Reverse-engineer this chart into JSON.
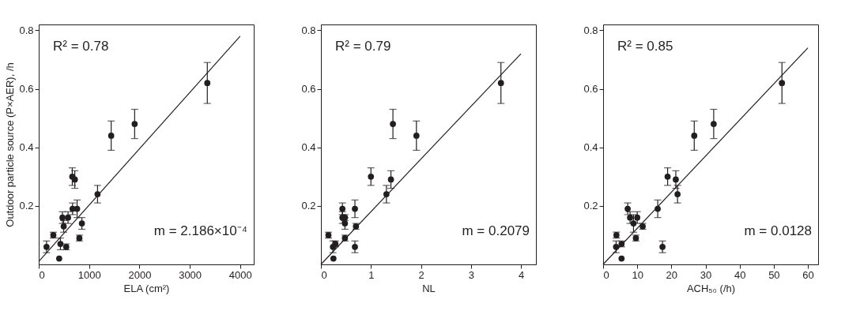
{
  "chart_data": [
    {
      "type": "scatter",
      "xlabel": "ELA (cm²)",
      "ylabel": "Outdoor particle source (P×AER), /h",
      "xlim": [
        0,
        4270
      ],
      "ylim": [
        0,
        0.82
      ],
      "xticks": [
        0,
        1000,
        2000,
        3000,
        4000
      ],
      "yticks": [
        0.2,
        0.4,
        0.6,
        0.8
      ],
      "grid": false,
      "annotations": [
        "R² = 0.78",
        "m = 2.186×10⁻⁴"
      ],
      "series": [
        {
          "marker": "circle",
          "color": "#231f20",
          "x": [
            155,
            290,
            406,
            431,
            546,
            471,
            582,
            496,
            672,
            762,
            807,
            857,
            1168,
            666,
            717,
            1439,
            1905,
            3348
          ],
          "values": [
            0.06,
            0.1,
            0.02,
            0.07,
            0.06,
            0.16,
            0.16,
            0.13,
            0.19,
            0.19,
            0.09,
            0.14,
            0.24,
            0.3,
            0.29,
            0.44,
            0.48,
            0.62
          ],
          "errors": [
            0.02,
            0.01,
            null,
            0.02,
            0.01,
            0.02,
            0.02,
            0.02,
            0.02,
            0.03,
            0.01,
            0.02,
            0.03,
            0.03,
            0.03,
            0.05,
            0.05,
            0.07
          ]
        },
        {
          "type": "line",
          "marker": "none",
          "color": "#231f20",
          "x": [
            0,
            4000
          ],
          "values": [
            0.01,
            0.78
          ]
        }
      ]
    },
    {
      "type": "scatter",
      "xlabel": "NL",
      "xlim": [
        0,
        4.3
      ],
      "ylim": [
        0,
        0.82
      ],
      "xticks": [
        0,
        1,
        2,
        3,
        4
      ],
      "yticks": [
        0.2,
        0.4,
        0.6,
        0.8
      ],
      "grid": false,
      "annotations": [
        "R² = 0.79",
        "m = 0.2079"
      ],
      "series": [
        {
          "marker": "circle",
          "color": "#231f20",
          "x": [
            0.15,
            0.25,
            0.24,
            0.29,
            0.43,
            0.43,
            0.48,
            0.48,
            0.48,
            0.7,
            0.68,
            0.68,
            1.31,
            1.0,
            1.4,
            1.44,
            1.91,
            3.6
          ],
          "values": [
            0.1,
            0.02,
            0.06,
            0.07,
            0.19,
            0.16,
            0.16,
            0.14,
            0.09,
            0.13,
            0.19,
            0.06,
            0.24,
            0.3,
            0.29,
            0.48,
            0.44,
            0.62
          ],
          "errors": [
            0.01,
            null,
            0.02,
            0.01,
            0.02,
            0.02,
            0.01,
            0.02,
            0.01,
            0.01,
            0.03,
            0.02,
            0.03,
            0.03,
            0.03,
            0.05,
            0.05,
            0.07
          ]
        },
        {
          "type": "line",
          "marker": "none",
          "color": "#231f20",
          "x": [
            0,
            4
          ],
          "values": [
            0.0,
            0.72
          ]
        }
      ]
    },
    {
      "type": "scatter",
      "xlabel": "ACH₅₀ (/h)",
      "xlim": [
        0,
        63
      ],
      "ylim": [
        0,
        0.82
      ],
      "xticks": [
        0,
        10,
        20,
        30,
        40,
        50,
        60
      ],
      "yticks": [
        0.2,
        0.4,
        0.6,
        0.8
      ],
      "grid": false,
      "annotations": [
        "R² = 0.85",
        "m = 0.0128"
      ],
      "series": [
        {
          "marker": "circle",
          "color": "#231f20",
          "x": [
            3.9,
            3.8,
            5.4,
            5.4,
            7.2,
            7.9,
            10.0,
            8.9,
            9.6,
            11.6,
            16.0,
            17.4,
            18.9,
            21.3,
            21.8,
            26.7,
            32.4,
            52.4
          ],
          "values": [
            0.1,
            0.06,
            0.07,
            0.02,
            0.19,
            0.16,
            0.16,
            0.14,
            0.09,
            0.13,
            0.19,
            0.06,
            0.3,
            0.29,
            0.24,
            0.44,
            0.48,
            0.62
          ],
          "errors": [
            0.01,
            0.02,
            0.01,
            null,
            0.02,
            0.02,
            0.02,
            0.03,
            0.01,
            0.01,
            0.03,
            0.02,
            0.03,
            0.03,
            0.03,
            0.05,
            0.05,
            0.07
          ]
        },
        {
          "type": "line",
          "marker": "none",
          "color": "#231f20",
          "x": [
            0,
            60
          ],
          "values": [
            0.0,
            0.74
          ]
        }
      ]
    }
  ]
}
